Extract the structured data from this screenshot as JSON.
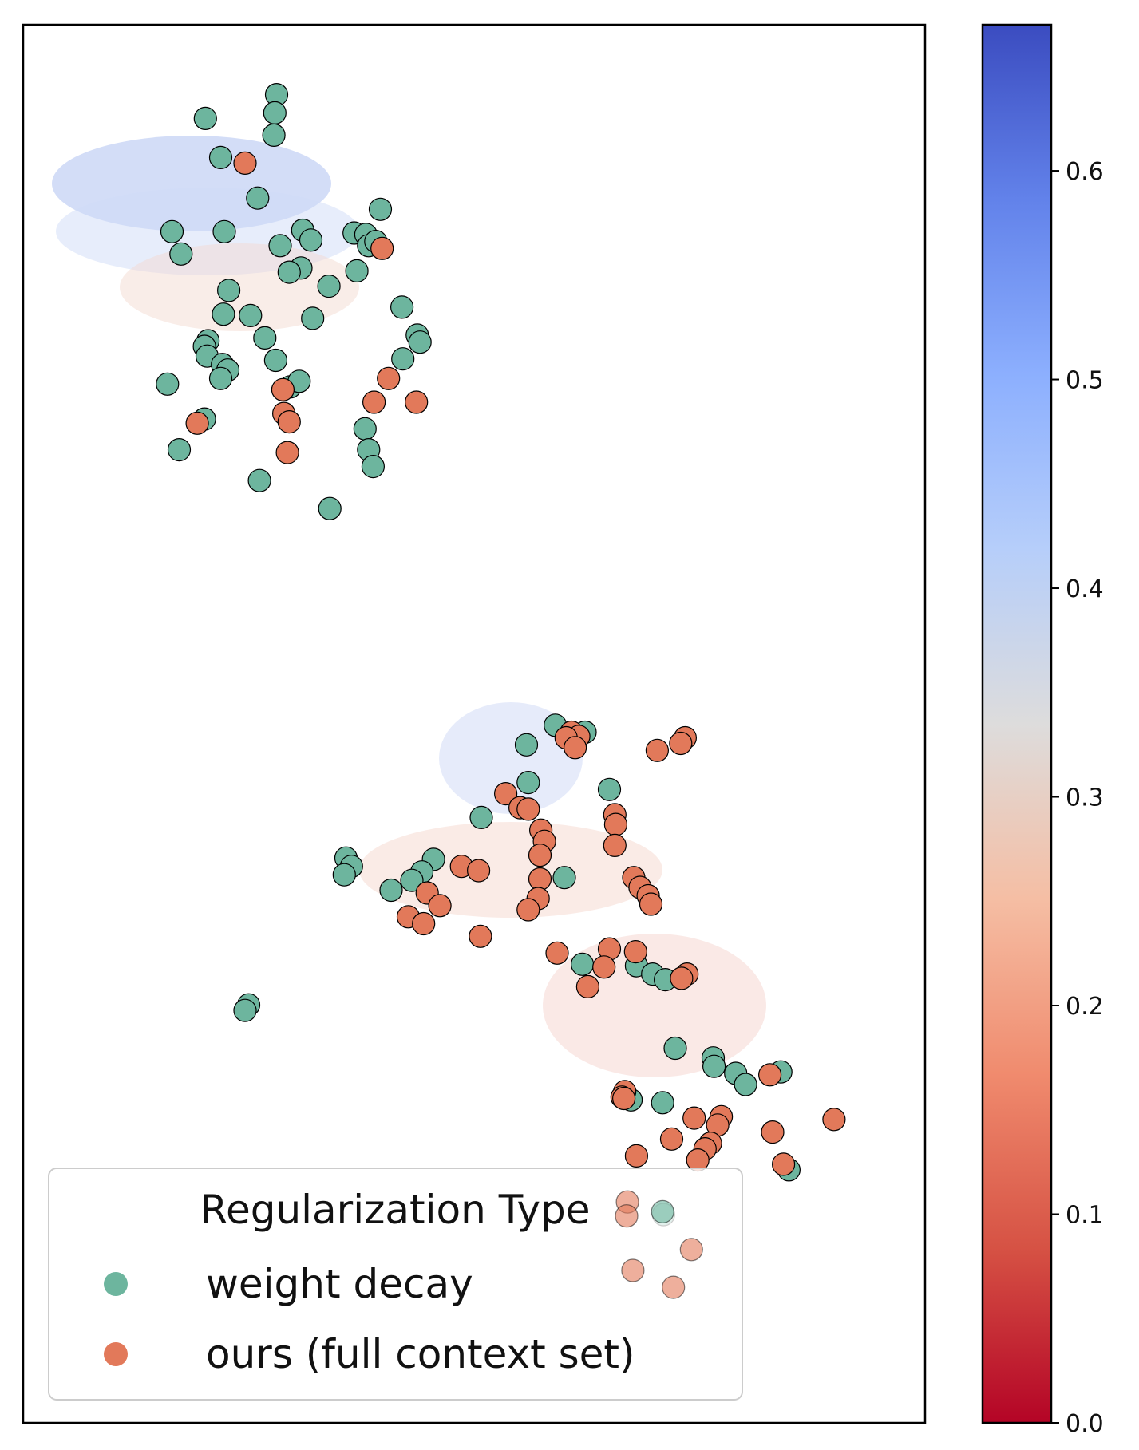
{
  "chart_data": {
    "type": "scatter",
    "title": "",
    "xlabel": "",
    "ylabel": "",
    "xlim": [
      0,
      100
    ],
    "ylim": [
      0,
      100
    ],
    "legend": {
      "title": "Regularization Type",
      "placement": "lower-left",
      "entries": [
        {
          "label": "weight decay",
          "color": "#6db59e"
        },
        {
          "label": "ours (full context set)",
          "color": "#e2795a"
        }
      ]
    },
    "colorbar": {
      "colormap": "coolwarm",
      "min": 0.0,
      "max": 0.67,
      "ticks": [
        "0.0",
        "0.1",
        "0.2",
        "0.3",
        "0.4",
        "0.5",
        "0.6"
      ],
      "tick_values": [
        0.0,
        0.1,
        0.2,
        0.3,
        0.4,
        0.5,
        0.6
      ]
    },
    "series": [
      {
        "name": "weight decay",
        "color": "#6db59e",
        "points": [
          [
            28.1,
            95.0
          ],
          [
            27.9,
            93.7
          ],
          [
            20.2,
            93.3
          ],
          [
            27.8,
            92.1
          ],
          [
            21.9,
            90.5
          ],
          [
            26.0,
            87.6
          ],
          [
            39.6,
            86.8
          ],
          [
            16.5,
            85.2
          ],
          [
            22.3,
            85.2
          ],
          [
            28.5,
            84.2
          ],
          [
            31.0,
            85.3
          ],
          [
            31.9,
            84.6
          ],
          [
            36.7,
            85.1
          ],
          [
            38.0,
            85.0
          ],
          [
            38.3,
            84.2
          ],
          [
            39.1,
            84.5
          ],
          [
            17.5,
            83.6
          ],
          [
            30.8,
            82.6
          ],
          [
            29.5,
            82.3
          ],
          [
            37.0,
            82.4
          ],
          [
            33.9,
            81.3
          ],
          [
            22.8,
            81.0
          ],
          [
            42.0,
            79.8
          ],
          [
            22.2,
            79.3
          ],
          [
            25.2,
            79.2
          ],
          [
            32.1,
            79.0
          ],
          [
            43.7,
            77.8
          ],
          [
            44.0,
            77.3
          ],
          [
            20.5,
            77.4
          ],
          [
            20.1,
            77.0
          ],
          [
            26.8,
            77.6
          ],
          [
            20.4,
            76.3
          ],
          [
            42.1,
            76.1
          ],
          [
            28.0,
            76.0
          ],
          [
            22.1,
            75.7
          ],
          [
            22.7,
            75.3
          ],
          [
            21.9,
            74.7
          ],
          [
            16.0,
            74.3
          ],
          [
            29.6,
            74.1
          ],
          [
            30.6,
            74.5
          ],
          [
            20.1,
            71.8
          ],
          [
            37.9,
            71.1
          ],
          [
            17.3,
            69.6
          ],
          [
            38.3,
            69.6
          ],
          [
            38.8,
            68.4
          ],
          [
            26.2,
            67.4
          ],
          [
            34.0,
            65.4
          ],
          [
            59.0,
            49.9
          ],
          [
            62.3,
            49.4
          ],
          [
            55.8,
            48.5
          ],
          [
            56.0,
            45.8
          ],
          [
            65.0,
            45.3
          ],
          [
            50.8,
            43.3
          ],
          [
            35.8,
            40.4
          ],
          [
            45.5,
            40.3
          ],
          [
            36.4,
            39.8
          ],
          [
            35.6,
            39.2
          ],
          [
            60.0,
            39.0
          ],
          [
            44.2,
            39.4
          ],
          [
            43.1,
            38.8
          ],
          [
            40.8,
            38.1
          ],
          [
            62.0,
            32.8
          ],
          [
            68.0,
            32.7
          ],
          [
            69.8,
            32.1
          ],
          [
            71.2,
            31.7
          ],
          [
            25.0,
            29.9
          ],
          [
            24.6,
            29.5
          ],
          [
            72.3,
            26.8
          ],
          [
            76.5,
            26.1
          ],
          [
            76.6,
            25.5
          ],
          [
            79.0,
            25.0
          ],
          [
            80.1,
            24.2
          ],
          [
            84.0,
            25.1
          ],
          [
            67.4,
            23.1
          ],
          [
            70.9,
            22.9
          ],
          [
            84.9,
            18.1
          ],
          [
            71.0,
            14.9
          ]
        ]
      },
      {
        "name": "ours (full context set)",
        "color": "#e2795a",
        "points": [
          [
            24.6,
            90.1
          ],
          [
            39.8,
            84.0
          ],
          [
            40.5,
            74.7
          ],
          [
            28.8,
            73.9
          ],
          [
            38.9,
            73.0
          ],
          [
            43.6,
            73.0
          ],
          [
            28.9,
            72.2
          ],
          [
            29.5,
            71.6
          ],
          [
            19.3,
            71.5
          ],
          [
            29.3,
            69.4
          ],
          [
            60.8,
            49.4
          ],
          [
            61.6,
            49.1
          ],
          [
            60.2,
            49.0
          ],
          [
            73.4,
            49.0
          ],
          [
            72.9,
            48.6
          ],
          [
            61.2,
            48.3
          ],
          [
            70.3,
            48.1
          ],
          [
            53.5,
            45.0
          ],
          [
            55.1,
            44.0
          ],
          [
            56.0,
            43.9
          ],
          [
            65.6,
            43.5
          ],
          [
            65.7,
            42.8
          ],
          [
            57.4,
            42.4
          ],
          [
            57.8,
            41.6
          ],
          [
            65.6,
            41.3
          ],
          [
            57.3,
            40.6
          ],
          [
            48.6,
            39.8
          ],
          [
            50.5,
            39.5
          ],
          [
            67.7,
            39.0
          ],
          [
            57.3,
            38.9
          ],
          [
            68.4,
            38.3
          ],
          [
            69.3,
            37.7
          ],
          [
            44.8,
            37.9
          ],
          [
            57.1,
            37.5
          ],
          [
            69.6,
            37.1
          ],
          [
            46.2,
            37.0
          ],
          [
            56.0,
            36.7
          ],
          [
            42.7,
            36.2
          ],
          [
            44.4,
            35.7
          ],
          [
            50.7,
            34.8
          ],
          [
            59.2,
            33.6
          ],
          [
            65.0,
            33.9
          ],
          [
            67.9,
            33.7
          ],
          [
            64.4,
            32.6
          ],
          [
            73.6,
            32.1
          ],
          [
            73.0,
            31.8
          ],
          [
            62.6,
            31.2
          ],
          [
            82.8,
            24.9
          ],
          [
            66.7,
            23.7
          ],
          [
            66.4,
            23.3
          ],
          [
            66.6,
            23.2
          ],
          [
            74.4,
            21.8
          ],
          [
            77.4,
            21.9
          ],
          [
            77.0,
            21.3
          ],
          [
            89.9,
            21.7
          ],
          [
            83.1,
            20.8
          ],
          [
            71.9,
            20.3
          ],
          [
            76.2,
            20.0
          ],
          [
            75.6,
            19.6
          ],
          [
            68.0,
            19.1
          ],
          [
            74.8,
            18.8
          ],
          [
            84.3,
            18.5
          ]
        ]
      },
      {
        "name": "ours (full context set) — faded",
        "color": "#e2795a",
        "points": [
          [
            67.0,
            15.8
          ],
          [
            66.9,
            14.8
          ],
          [
            74.1,
            12.4
          ],
          [
            67.6,
            10.9
          ],
          [
            72.1,
            9.7
          ]
        ]
      },
      {
        "name": "weight decay — faded",
        "color": "#6db59e",
        "points": [
          [
            70.9,
            15.1
          ]
        ]
      }
    ]
  }
}
